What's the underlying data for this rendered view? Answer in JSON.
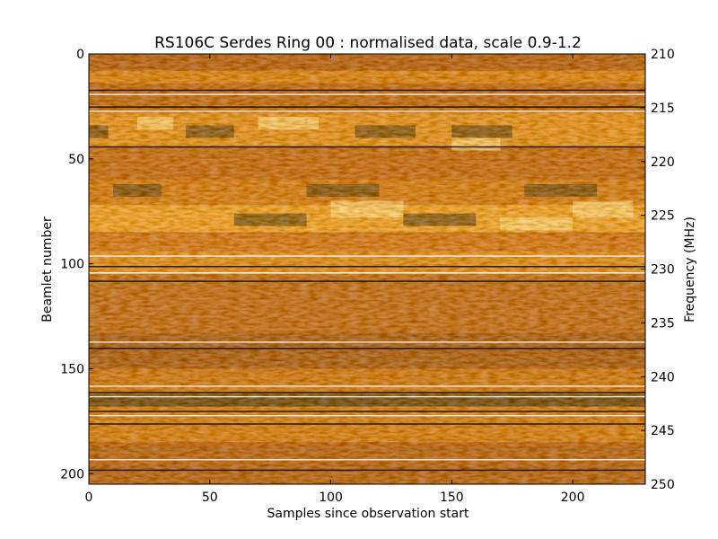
{
  "chart_data": {
    "type": "heatmap",
    "title": "RS106C Serdes Ring 00 : normalised data, scale 0.9-1.2",
    "xlabel": "Samples since observation start",
    "ylabel": "Beamlet number",
    "y2label": "Frequency (MHz)",
    "xlim": [
      0,
      230
    ],
    "ylim": [
      205,
      0
    ],
    "y2lim": [
      250,
      210
    ],
    "xticks": [
      "0",
      "50",
      "100",
      "150",
      "200"
    ],
    "yticks": [
      "0",
      "50",
      "100",
      "150",
      "200"
    ],
    "y2ticks": [
      "210",
      "215",
      "220",
      "225",
      "230",
      "235",
      "240",
      "245",
      "250"
    ],
    "color_scale": [
      0.9,
      1.2
    ],
    "colormap": "afmhot",
    "grid": false
  }
}
